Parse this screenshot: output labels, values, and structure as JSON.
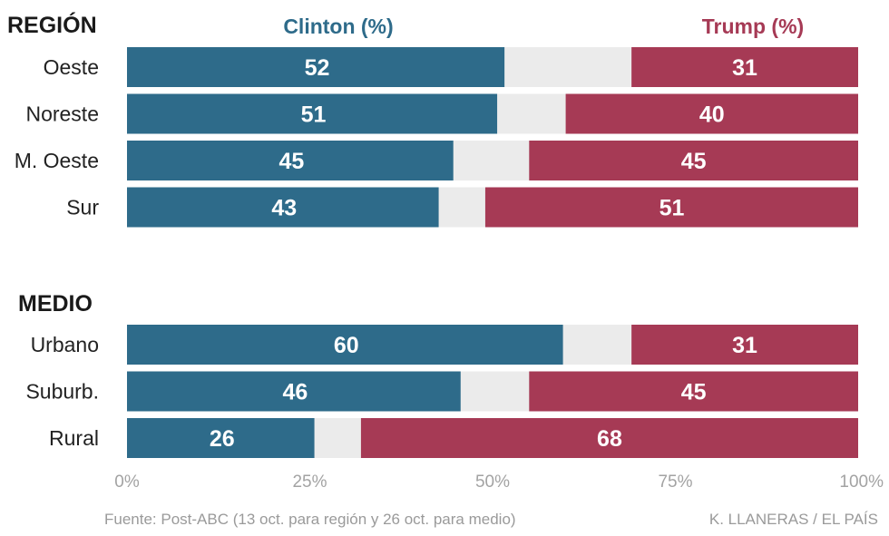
{
  "colors": {
    "clinton": "#2e6b8a",
    "trump": "#a63a55",
    "other": "#ebebeb"
  },
  "chart_data": {
    "type": "bar",
    "orientation": "horizontal-stacked",
    "xlim": [
      0,
      100
    ],
    "x_ticks": [
      "0%",
      "25%",
      "50%",
      "75%",
      "100%"
    ],
    "series_labels": {
      "clinton": "Clinton (%)",
      "trump": "Trump (%)"
    },
    "groups": [
      {
        "title": "REGIÓN",
        "categories": [
          "Oeste",
          "Noreste",
          "M. Oeste",
          "Sur"
        ],
        "series": [
          {
            "name": "Clinton",
            "values": [
              52,
              51,
              45,
              43
            ]
          },
          {
            "name": "Trump",
            "values": [
              31,
              40,
              45,
              51
            ]
          }
        ]
      },
      {
        "title": "MEDIO",
        "categories": [
          "Urbano",
          "Suburb.",
          "Rural"
        ],
        "series": [
          {
            "name": "Clinton",
            "values": [
              60,
              46,
              26
            ]
          },
          {
            "name": "Trump",
            "values": [
              31,
              45,
              68
            ]
          }
        ]
      }
    ]
  },
  "footer": {
    "source": "Fuente: Post-ABC (13 oct. para región y 26 oct. para medio)",
    "credit": "K. LLANERAS  /  EL PAÍS"
  }
}
